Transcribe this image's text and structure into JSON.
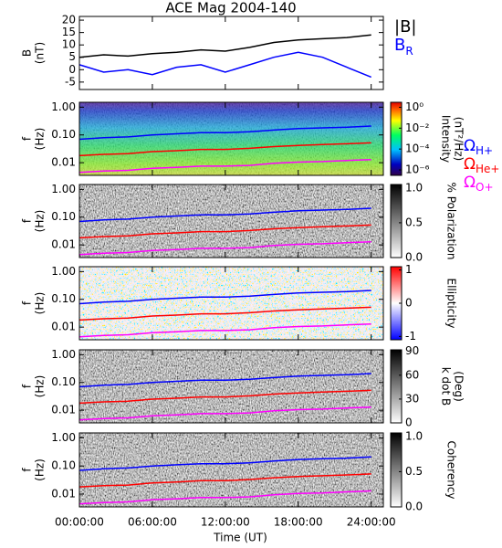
{
  "chart_data": [
    {
      "type": "line",
      "title": "ACE Mag 2004-140",
      "ylabel": "B",
      "yunit": "(nT)",
      "xlim": [
        0,
        25
      ],
      "ylim": [
        -8,
        21.5
      ],
      "yticks": [
        -5,
        0,
        5,
        10,
        15,
        20
      ],
      "yscale": "linear",
      "x": [
        0,
        2,
        4,
        6,
        8,
        10,
        12,
        14,
        16,
        18,
        20,
        22,
        24
      ],
      "series": [
        {
          "name": "|B|",
          "color": "#000000",
          "values": [
            5,
            6,
            5.5,
            6.5,
            7,
            8,
            7.5,
            9,
            11,
            12,
            12.5,
            13,
            14
          ]
        },
        {
          "name": "B",
          "subscript": "R",
          "color": "#0000ff",
          "values": [
            2,
            -1,
            0,
            -2,
            1,
            2,
            -1,
            2,
            5,
            7,
            5,
            1,
            -3
          ]
        }
      ]
    },
    {
      "type": "spectrogram",
      "ylabel": "f",
      "yunit": "(Hz)",
      "yscale": "log",
      "xlim": [
        0,
        25
      ],
      "ylim": [
        0.0035,
        1.5
      ],
      "yticks": [
        {
          "value": 1,
          "label": "1.00"
        },
        {
          "value": 0.1,
          "label": "0.10"
        },
        {
          "value": 0.01,
          "label": "0.01"
        }
      ],
      "colormap": "jet",
      "colorbar_label": "Intensity",
      "colorbar_unit": "(nT²/Hz)",
      "zscale": "log",
      "zlim": [
        3e-07,
        3
      ],
      "zticks": [
        {
          "value": 1,
          "label": "10⁰"
        },
        {
          "value": 0.01,
          "label": "10⁻²"
        },
        {
          "value": 0.0001,
          "label": "10⁻⁴"
        },
        {
          "value": 1e-06,
          "label": "10⁻⁶"
        }
      ],
      "x": [
        0,
        2,
        4,
        6,
        8,
        10,
        12,
        14,
        16,
        18,
        20,
        22,
        24
      ],
      "series": [
        {
          "name": "Ω",
          "subscript": "H+",
          "color": "#0000ff",
          "values": [
            0.07,
            0.08,
            0.085,
            0.1,
            0.11,
            0.12,
            0.12,
            0.13,
            0.15,
            0.17,
            0.18,
            0.19,
            0.21
          ]
        },
        {
          "name": "Ω",
          "subscript": "He+",
          "color": "#ff0000",
          "values": [
            0.018,
            0.02,
            0.021,
            0.025,
            0.027,
            0.03,
            0.03,
            0.033,
            0.038,
            0.042,
            0.045,
            0.048,
            0.052
          ]
        },
        {
          "name": "Ω",
          "subscript": "O+",
          "color": "#ff00ff",
          "values": [
            0.0045,
            0.005,
            0.0053,
            0.0063,
            0.0068,
            0.0075,
            0.0075,
            0.008,
            0.0095,
            0.0105,
            0.011,
            0.012,
            0.013
          ]
        }
      ]
    },
    {
      "type": "spectrogram",
      "ylabel": "f",
      "yunit": "(Hz)",
      "yscale": "log",
      "xlim": [
        0,
        25
      ],
      "ylim": [
        0.0035,
        1.5
      ],
      "yticks": [
        {
          "value": 1,
          "label": "1.00"
        },
        {
          "value": 0.1,
          "label": "0.10"
        },
        {
          "value": 0.01,
          "label": "0.01"
        }
      ],
      "colormap": "gray",
      "colorbar_label": "% Polarization",
      "zscale": "linear",
      "zlim": [
        0,
        1.05
      ],
      "zticks": [
        {
          "value": 1,
          "label": "1.0"
        },
        {
          "value": 0.5,
          "label": "0.5"
        },
        {
          "value": 0,
          "label": "0.0"
        }
      ]
    },
    {
      "type": "spectrogram",
      "ylabel": "f",
      "yunit": "(Hz)",
      "yscale": "log",
      "xlim": [
        0,
        25
      ],
      "ylim": [
        0.0035,
        1.5
      ],
      "yticks": [
        {
          "value": 1,
          "label": "1.00"
        },
        {
          "value": 0.1,
          "label": "0.10"
        },
        {
          "value": 0.01,
          "label": "0.01"
        }
      ],
      "colormap": "bwr",
      "colorbar_label": "Ellipticity",
      "zscale": "linear",
      "zlim": [
        -1.1,
        1.1
      ],
      "zticks": [
        1,
        0,
        -1
      ]
    },
    {
      "type": "spectrogram",
      "ylabel": "f",
      "yunit": "(Hz)",
      "yscale": "log",
      "xlim": [
        0,
        25
      ],
      "ylim": [
        0.0035,
        1.5
      ],
      "yticks": [
        {
          "value": 1,
          "label": "1.00"
        },
        {
          "value": 0.1,
          "label": "0.10"
        },
        {
          "value": 0.01,
          "label": "0.01"
        }
      ],
      "colormap": "gray",
      "colorbar_label": "k dot B",
      "colorbar_unit": "(Deg)",
      "zscale": "linear",
      "zlim": [
        0,
        92
      ],
      "zticks": [
        90,
        60,
        30,
        0
      ]
    },
    {
      "type": "spectrogram",
      "ylabel": "f",
      "yunit": "(Hz)",
      "yscale": "log",
      "xlim": [
        0,
        25
      ],
      "ylim": [
        0.0035,
        1.5
      ],
      "yticks": [
        {
          "value": 1,
          "label": "1.00"
        },
        {
          "value": 0.1,
          "label": "0.10"
        },
        {
          "value": 0.01,
          "label": "0.01"
        }
      ],
      "colormap": "gray",
      "colorbar_label": "Coherency",
      "zscale": "linear",
      "zlim": [
        0,
        1.05
      ],
      "zticks": [
        {
          "value": 1,
          "label": "1.0"
        },
        {
          "value": 0.5,
          "label": "0.5"
        },
        {
          "value": 0,
          "label": "0.0"
        }
      ],
      "xlabel": "Time (UT)",
      "xticks": [
        {
          "value": 0,
          "label": "00:00:00"
        },
        {
          "value": 6,
          "label": "06:00:00"
        },
        {
          "value": 12,
          "label": "12:00:00"
        },
        {
          "value": 18,
          "label": "18:00:00"
        },
        {
          "value": 24,
          "label": "24:00:00"
        }
      ]
    }
  ]
}
